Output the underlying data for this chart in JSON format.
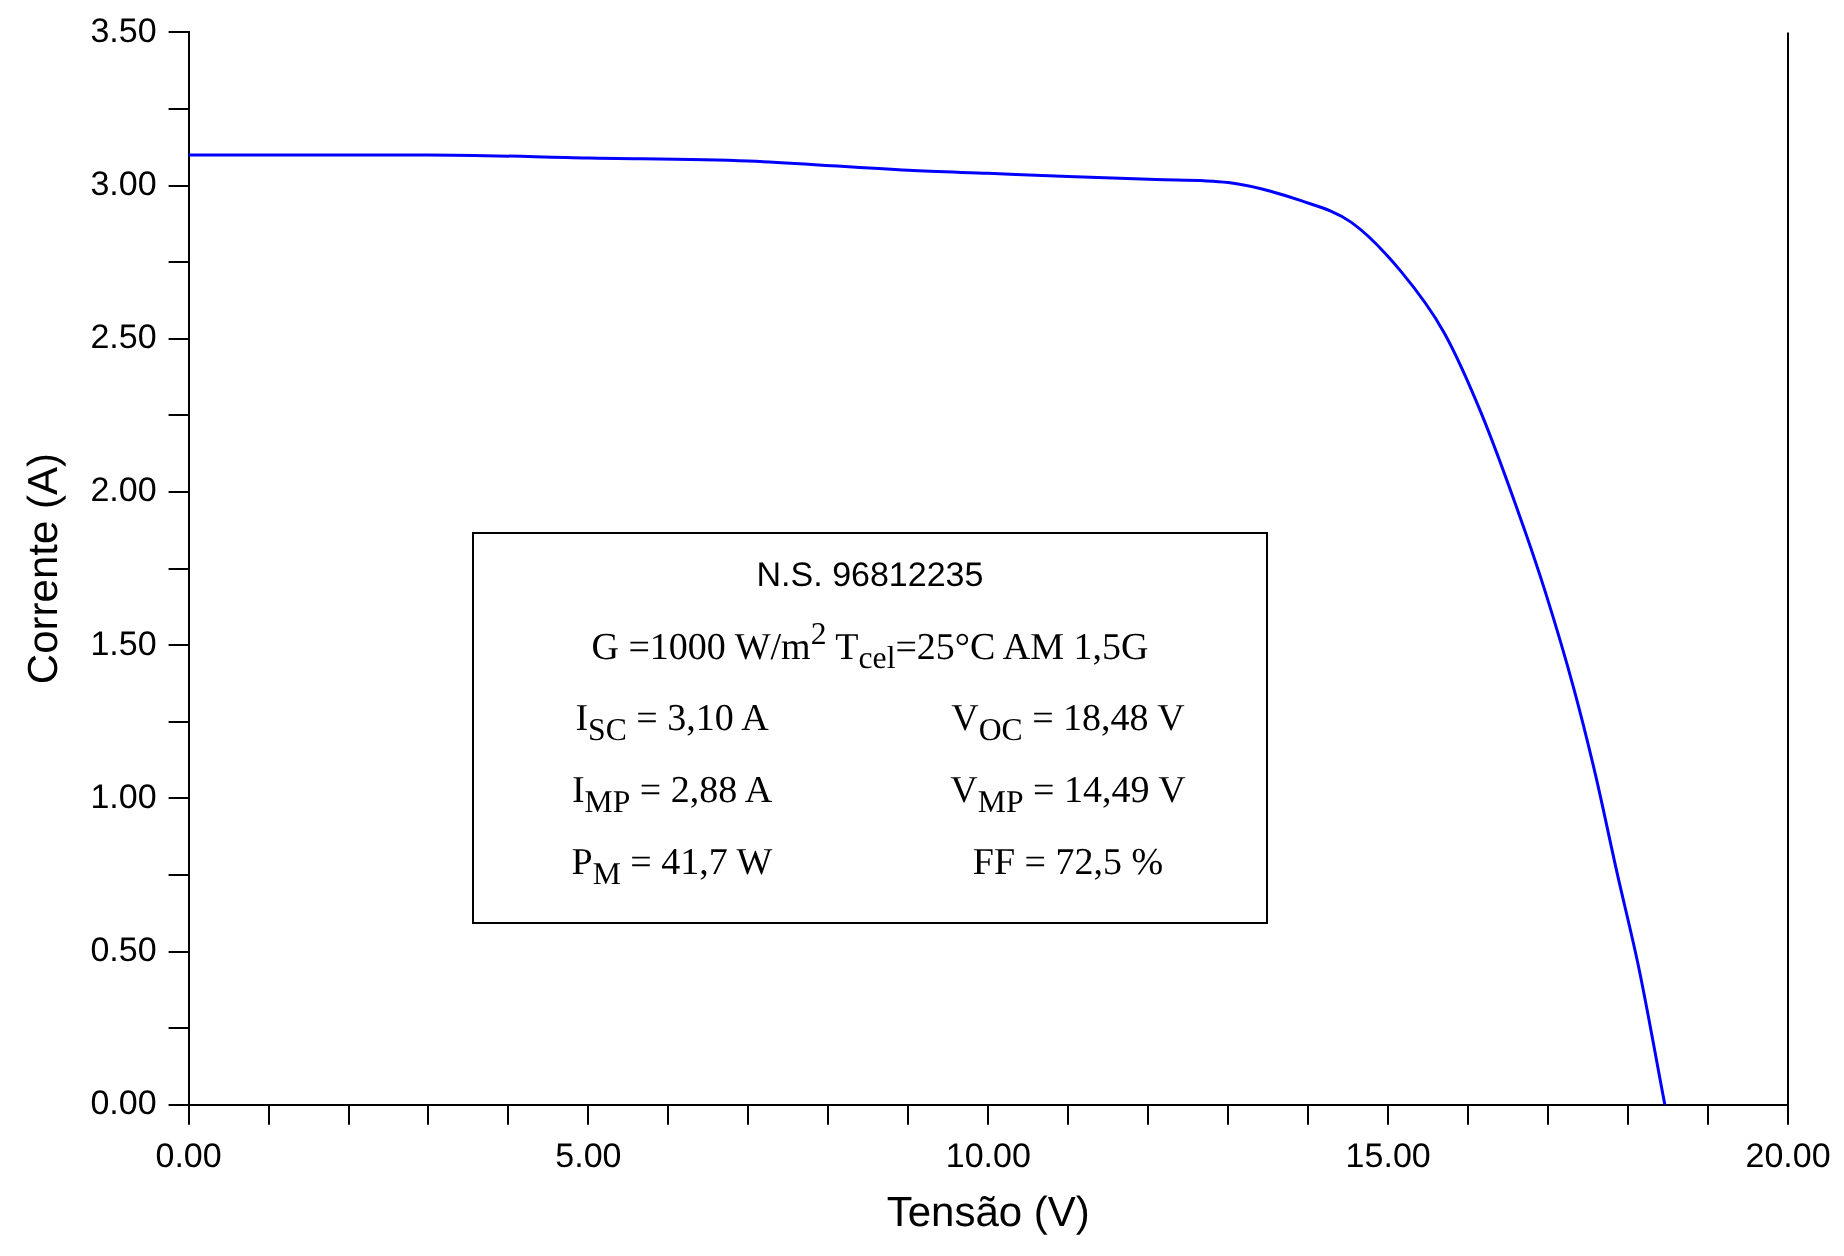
{
  "chart_data": {
    "type": "line",
    "xlabel": "Tensão (V)",
    "ylabel": "Corrente (A)",
    "series": [
      {
        "color": "#0000ff",
        "x": [
          0,
          3,
          5,
          7,
          9,
          10,
          11,
          12.1,
          13.0,
          13.92,
          14.54,
          15.16,
          15.7,
          16.16,
          16.62,
          16.97,
          17.32,
          17.59,
          17.86,
          18.14,
          18.46
        ],
        "values": [
          3.1,
          3.1,
          3.09,
          3.08,
          3.05,
          3.04,
          3.03,
          3.02,
          3.01,
          2.95,
          2.88,
          2.72,
          2.52,
          2.26,
          1.94,
          1.67,
          1.36,
          1.08,
          0.76,
          0.44,
          0
        ]
      }
    ],
    "xlim": [
      0,
      20
    ],
    "xticks": [
      {
        "value": 0,
        "label": "0.00"
      },
      {
        "value": 1,
        "label": null
      },
      {
        "value": 2,
        "label": null
      },
      {
        "value": 3,
        "label": null
      },
      {
        "value": 4,
        "label": null
      },
      {
        "value": 5,
        "label": "5.00"
      },
      {
        "value": 6,
        "label": null
      },
      {
        "value": 7,
        "label": null
      },
      {
        "value": 8,
        "label": null
      },
      {
        "value": 9,
        "label": null
      },
      {
        "value": 10,
        "label": "10.00"
      },
      {
        "value": 11,
        "label": null
      },
      {
        "value": 12,
        "label": null
      },
      {
        "value": 13,
        "label": null
      },
      {
        "value": 14,
        "label": null
      },
      {
        "value": 15,
        "label": "15.00"
      },
      {
        "value": 16,
        "label": null
      },
      {
        "value": 17,
        "label": null
      },
      {
        "value": 18,
        "label": null
      },
      {
        "value": 19,
        "label": null
      },
      {
        "value": 20,
        "label": "20.00"
      }
    ],
    "ylim": [
      0,
      3.5
    ],
    "yticks": [
      {
        "value": 0,
        "label": "0.00"
      },
      {
        "value": 0.25,
        "label": null
      },
      {
        "value": 0.5,
        "label": "0.50"
      },
      {
        "value": 0.75,
        "label": null
      },
      {
        "value": 1,
        "label": "1.00"
      },
      {
        "value": 1.25,
        "label": null
      },
      {
        "value": 1.5,
        "label": "1.50"
      },
      {
        "value": 1.75,
        "label": null
      },
      {
        "value": 2,
        "label": "2.00"
      },
      {
        "value": 2.25,
        "label": null
      },
      {
        "value": 2.5,
        "label": "2.50"
      },
      {
        "value": 2.75,
        "label": null
      },
      {
        "value": 3,
        "label": "3.00"
      },
      {
        "value": 3.25,
        "label": null
      },
      {
        "value": 3.5,
        "label": "3.50"
      }
    ],
    "grid": false,
    "legend": false,
    "marker": "none",
    "line_style": "solid",
    "annotations": [
      "N.S. 96812235",
      "G =1000 W/m$^{2}$  T$_{cel}$=25°C  AM 1,5G",
      "I$_{SC}$ = 3,10 A",
      "V$_{OC}$ = 18,48 V",
      "I$_{MP}$ = 2,88 A",
      "V$_{MP}$ = 14,49 V",
      "P$_{M}$ = 41,7 W",
      "FF = 72,5 %"
    ]
  }
}
